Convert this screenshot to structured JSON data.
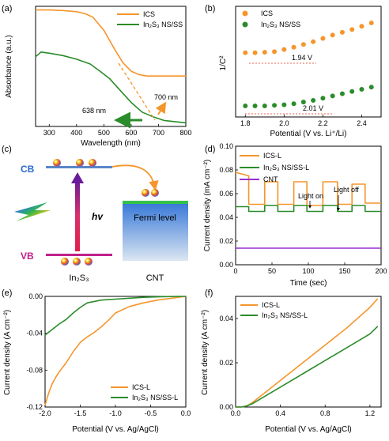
{
  "panels": {
    "a": {
      "label": "(a)",
      "xlabel": "Wavelength (nm)",
      "ylabel": "Absorbance (a.u.)",
      "xticks": [
        "300",
        "400",
        "500",
        "600",
        "700",
        "800"
      ],
      "legend": [
        "ICS",
        "In₂S₃ NS/SS"
      ],
      "ann": [
        "638 nm",
        "700 nm"
      ]
    },
    "b": {
      "label": "(b)",
      "xlabel": "Potential (V vs. Li⁺/Li)",
      "ylabel": "1/C²",
      "xticks": [
        "1.8",
        "2.0",
        "2.2",
        "2.4"
      ],
      "legend": [
        "ICS",
        "In₂S₃ NS/SS"
      ],
      "ann": [
        "1.94 V",
        "2.01 V"
      ]
    },
    "c": {
      "label": "(c)",
      "cb": "CB",
      "vb": "VB",
      "hv": "hv",
      "fermi": "Fermi level",
      "mat1": "In₂S₃",
      "mat2": "CNT"
    },
    "d": {
      "label": "(d)",
      "xlabel": "Time (sec)",
      "ylabel": "Current density (mA cm⁻²)",
      "xticks": [
        "0",
        "50",
        "100",
        "150",
        "200"
      ],
      "yticks": [
        "0.00",
        "0.02",
        "0.04",
        "0.06",
        "0.08",
        "0.10"
      ],
      "legend": [
        "ICS-L",
        "In₂S₃ NS/SS-L",
        "CNT"
      ],
      "ann": [
        "Light on",
        "Light off"
      ]
    },
    "e": {
      "label": "(e)",
      "xlabel": "Potential (V vs. Ag/AgCl)",
      "ylabel": "Current density (A cm⁻²)",
      "xticks": [
        "-2.0",
        "-1.5",
        "-1.0",
        "-0.5",
        "0.0"
      ],
      "yticks": [
        "0.00",
        "-0.04",
        "-0.08",
        "-0.12"
      ],
      "legend": [
        "ICS-L",
        "In₂S₃ NS/SS-L"
      ]
    },
    "f": {
      "label": "(f)",
      "xlabel": "Potential (V vs. Ag/AgCl)",
      "ylabel": "Current density (A cm⁻²)",
      "xticks": [
        "0.0",
        "0.4",
        "0.8",
        "1.2"
      ],
      "yticks": [
        "0.00",
        "0.02",
        "0.04"
      ],
      "legend": [
        "ICS-L",
        "In₂S₃ NS/SS-L"
      ]
    }
  },
  "colors": {
    "ics": "#f5952b",
    "in2s3": "#2a8c2a",
    "cnt": "#9a2fd0"
  },
  "chart_data": [
    {
      "panel": "a",
      "type": "line",
      "xlim": [
        250,
        800
      ],
      "series": [
        {
          "name": "ICS",
          "x": [
            250,
            300,
            350,
            400,
            430,
            460,
            500,
            540,
            570,
            600,
            630,
            660,
            700,
            750,
            800
          ],
          "values": [
            0.97,
            0.97,
            0.965,
            0.955,
            0.94,
            0.91,
            0.8,
            0.64,
            0.53,
            0.46,
            0.43,
            0.42,
            0.42,
            0.42,
            0.42
          ]
        },
        {
          "name": "In₂S₃ NS/SS",
          "x": [
            250,
            270,
            300,
            350,
            400,
            450,
            480,
            520,
            560,
            600,
            640,
            680,
            720,
            760,
            800
          ],
          "values": [
            0.58,
            0.62,
            0.61,
            0.59,
            0.56,
            0.52,
            0.47,
            0.4,
            0.3,
            0.2,
            0.12,
            0.08,
            0.05,
            0.04,
            0.03
          ]
        }
      ]
    },
    {
      "panel": "b",
      "type": "scatter",
      "xlim": [
        1.75,
        2.5
      ],
      "series": [
        {
          "name": "ICS",
          "x": [
            1.8,
            1.85,
            1.9,
            1.95,
            2.0,
            2.05,
            2.1,
            2.15,
            2.2,
            2.25,
            2.3,
            2.35,
            2.4,
            2.45
          ],
          "values": [
            0.58,
            0.58,
            0.585,
            0.59,
            0.61,
            0.63,
            0.655,
            0.68,
            0.71,
            0.74,
            0.765,
            0.79,
            0.82,
            0.85
          ]
        },
        {
          "name": "In₂S₃ NS/SS",
          "x": [
            1.8,
            1.85,
            1.9,
            1.95,
            2.0,
            2.05,
            2.1,
            2.15,
            2.2,
            2.25,
            2.3,
            2.35,
            2.4,
            2.45
          ],
          "values": [
            0.1,
            0.1,
            0.1,
            0.105,
            0.11,
            0.12,
            0.135,
            0.15,
            0.17,
            0.19,
            0.21,
            0.23,
            0.25,
            0.27
          ]
        }
      ]
    },
    {
      "panel": "d",
      "type": "line",
      "xlim": [
        0,
        200
      ],
      "ylim": [
        0,
        0.1
      ],
      "series": [
        {
          "name": "ICS-L",
          "x": [
            0,
            18,
            18,
            40,
            40,
            58,
            58,
            80,
            80,
            98,
            98,
            120,
            120,
            140,
            140,
            160,
            160,
            178,
            178,
            200
          ],
          "values": [
            0.078,
            0.075,
            0.051,
            0.051,
            0.07,
            0.07,
            0.051,
            0.051,
            0.07,
            0.07,
            0.05,
            0.05,
            0.07,
            0.07,
            0.051,
            0.051,
            0.068,
            0.068,
            0.052,
            0.052
          ]
        },
        {
          "name": "In₂S₃ NS/SS-L",
          "x": [
            0,
            18,
            18,
            40,
            40,
            58,
            58,
            80,
            80,
            98,
            98,
            120,
            120,
            140,
            140,
            160,
            160,
            178,
            178,
            200
          ],
          "values": [
            0.049,
            0.049,
            0.045,
            0.045,
            0.05,
            0.05,
            0.045,
            0.045,
            0.05,
            0.05,
            0.045,
            0.045,
            0.05,
            0.05,
            0.045,
            0.045,
            0.05,
            0.05,
            0.045,
            0.045
          ]
        },
        {
          "name": "CNT",
          "x": [
            0,
            200
          ],
          "values": [
            0.014,
            0.014
          ]
        }
      ]
    },
    {
      "panel": "e",
      "type": "line",
      "xlim": [
        -2.0,
        0.0
      ],
      "ylim": [
        -0.12,
        0.0
      ],
      "series": [
        {
          "name": "ICS-L",
          "x": [
            -2.0,
            -1.95,
            -1.9,
            -1.85,
            -1.8,
            -1.7,
            -1.6,
            -1.5,
            -1.4,
            -1.3,
            -1.2,
            -1.1,
            -1.0,
            -0.8,
            -0.6,
            -0.4,
            -0.2,
            0.0
          ],
          "values": [
            -0.118,
            -0.105,
            -0.095,
            -0.088,
            -0.082,
            -0.072,
            -0.06,
            -0.05,
            -0.044,
            -0.039,
            -0.033,
            -0.026,
            -0.018,
            -0.011,
            -0.007,
            -0.004,
            -0.002,
            0.0
          ]
        },
        {
          "name": "In₂S₃ NS/SS-L",
          "x": [
            -2.0,
            -1.9,
            -1.8,
            -1.7,
            -1.6,
            -1.5,
            -1.4,
            -1.2,
            -1.0,
            -0.8,
            -0.6,
            -0.4,
            -0.2,
            0.0
          ],
          "values": [
            -0.042,
            -0.036,
            -0.03,
            -0.025,
            -0.018,
            -0.012,
            -0.007,
            -0.004,
            -0.003,
            -0.002,
            -0.001,
            -0.0005,
            -0.0002,
            0.0
          ]
        }
      ]
    },
    {
      "panel": "f",
      "type": "line",
      "xlim": [
        0.0,
        1.3
      ],
      "ylim": [
        0.0,
        0.05
      ],
      "series": [
        {
          "name": "ICS-L",
          "x": [
            0.0,
            0.05,
            0.1,
            0.15,
            0.2,
            0.3,
            0.4,
            0.6,
            0.8,
            1.0,
            1.2,
            1.27
          ],
          "values": [
            0.0,
            0.0,
            0.0005,
            0.002,
            0.004,
            0.008,
            0.012,
            0.02,
            0.028,
            0.036,
            0.045,
            0.049
          ]
        },
        {
          "name": "In₂S₃ NS/SS-L",
          "x": [
            0.0,
            0.05,
            0.1,
            0.15,
            0.2,
            0.3,
            0.4,
            0.6,
            0.8,
            1.0,
            1.2,
            1.27
          ],
          "values": [
            0.0,
            0.0,
            0.0005,
            0.0015,
            0.003,
            0.006,
            0.009,
            0.015,
            0.021,
            0.027,
            0.033,
            0.0365
          ]
        }
      ]
    }
  ]
}
